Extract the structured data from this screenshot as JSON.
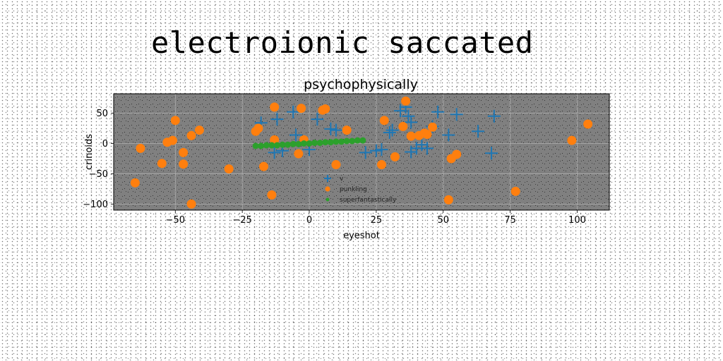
{
  "suptitle": "electroionic saccated",
  "chart_data": {
    "type": "scatter",
    "title": "psychophysically",
    "xlabel": "eyeshot",
    "ylabel": "crinoids",
    "xlim": [
      -73,
      112
    ],
    "ylim": [
      -110,
      82
    ],
    "xticks": [
      -50,
      -25,
      0,
      25,
      50,
      75,
      100
    ],
    "xtick_labels": [
      "−50",
      "−25",
      "0",
      "25",
      "50",
      "75",
      "100"
    ],
    "yticks": [
      -100,
      -50,
      0,
      50
    ],
    "ytick_labels": [
      "−100",
      "−50",
      "0",
      "50"
    ],
    "grid": true,
    "legend_position": "lower center",
    "axes_background": "#808080",
    "series": [
      {
        "name": "v",
        "marker": "plus",
        "color": "#1f77b4",
        "points": [
          [
            -18,
            34
          ],
          [
            -12,
            40
          ],
          [
            -6,
            52
          ],
          [
            -5,
            14
          ],
          [
            -10,
            -12
          ],
          [
            -13,
            -15
          ],
          [
            8,
            24
          ],
          [
            10,
            22
          ],
          [
            0,
            -10
          ],
          [
            3,
            40
          ],
          [
            21,
            -15
          ],
          [
            25,
            -12
          ],
          [
            27,
            -10
          ],
          [
            30,
            18
          ],
          [
            31,
            22
          ],
          [
            34,
            54
          ],
          [
            36,
            60
          ],
          [
            37,
            45
          ],
          [
            38,
            35
          ],
          [
            38,
            -14
          ],
          [
            40,
            -8
          ],
          [
            42,
            -2
          ],
          [
            44,
            -8
          ],
          [
            46,
            28
          ],
          [
            48,
            52
          ],
          [
            52,
            14
          ],
          [
            55,
            48
          ],
          [
            63,
            20
          ],
          [
            68,
            -16
          ],
          [
            69,
            45
          ]
        ]
      },
      {
        "name": "punkling",
        "marker": "circle",
        "color": "#ff7f0e",
        "points": [
          [
            -65,
            -65
          ],
          [
            -63,
            -8
          ],
          [
            -55,
            -33
          ],
          [
            -53,
            2
          ],
          [
            -51,
            5
          ],
          [
            -50,
            38
          ],
          [
            -47,
            -15
          ],
          [
            -47,
            -34
          ],
          [
            -44,
            13
          ],
          [
            -41,
            22
          ],
          [
            -30,
            -42
          ],
          [
            -20,
            20
          ],
          [
            -19,
            25
          ],
          [
            -17,
            -38
          ],
          [
            -14,
            -85
          ],
          [
            -13,
            60
          ],
          [
            -13,
            6
          ],
          [
            -4,
            -17
          ],
          [
            -3,
            58
          ],
          [
            -2,
            6
          ],
          [
            5,
            55
          ],
          [
            6,
            57
          ],
          [
            10,
            -35
          ],
          [
            14,
            22
          ],
          [
            27,
            -35
          ],
          [
            28,
            38
          ],
          [
            32,
            -22
          ],
          [
            35,
            28
          ],
          [
            36,
            70
          ],
          [
            38,
            12
          ],
          [
            41,
            13
          ],
          [
            43,
            17
          ],
          [
            44,
            15
          ],
          [
            46,
            27
          ],
          [
            52,
            -93
          ],
          [
            53,
            -25
          ],
          [
            55,
            -18
          ],
          [
            77,
            -79
          ],
          [
            98,
            5
          ],
          [
            104,
            32
          ],
          [
            -44,
            -100
          ]
        ]
      },
      {
        "name": "superfantastically",
        "marker": "circle-small",
        "color": "#2ca02c",
        "points": [
          [
            -20,
            -4
          ],
          [
            -18,
            -4
          ],
          [
            -16,
            -3
          ],
          [
            -14,
            -3
          ],
          [
            -12,
            -3
          ],
          [
            -10,
            -2
          ],
          [
            -8,
            -2
          ],
          [
            -6,
            -1
          ],
          [
            -4,
            -1
          ],
          [
            -2,
            0
          ],
          [
            0,
            0
          ],
          [
            2,
            1
          ],
          [
            4,
            1
          ],
          [
            6,
            2
          ],
          [
            8,
            2
          ],
          [
            10,
            3
          ],
          [
            12,
            3
          ],
          [
            14,
            4
          ],
          [
            16,
            4
          ],
          [
            18,
            5
          ],
          [
            20,
            5
          ]
        ]
      }
    ]
  }
}
